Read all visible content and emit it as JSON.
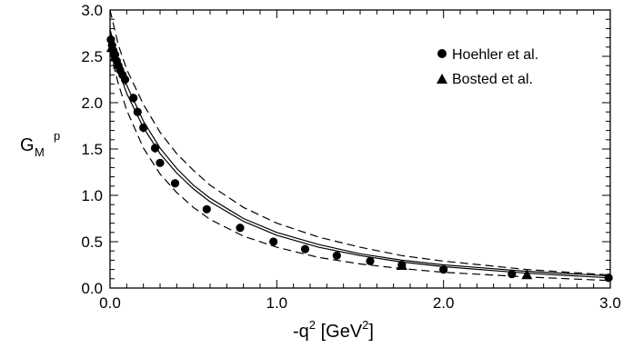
{
  "chart_data": {
    "type": "scatter",
    "xlabel": {
      "text": "-q",
      "sup": "2",
      "unit_open": " [GeV",
      "unit_sup": "2",
      "unit_close": "]"
    },
    "ylabel": {
      "main": "G",
      "sub": "M",
      "sup": "p"
    },
    "xlim": [
      0,
      3.0
    ],
    "ylim": [
      0,
      3.0
    ],
    "x_ticks": [
      0.0,
      1.0,
      2.0,
      3.0
    ],
    "x_tick_labels": [
      "0.0",
      "1.0",
      "2.0",
      "3.0"
    ],
    "y_ticks": [
      0.0,
      0.5,
      1.0,
      1.5,
      2.0,
      2.5,
      3.0
    ],
    "y_tick_labels": [
      "0.0",
      "0.5",
      "1.0",
      "1.5",
      "2.0",
      "2.5",
      "3.0"
    ],
    "legend_position": "top-right",
    "grid": false,
    "series": [
      {
        "name": "Hoehler et al.",
        "marker": "circle",
        "x": [
          0.005,
          0.012,
          0.02,
          0.03,
          0.04,
          0.05,
          0.06,
          0.075,
          0.09,
          0.14,
          0.165,
          0.2,
          0.27,
          0.3,
          0.39,
          0.58,
          0.78,
          0.98,
          1.17,
          1.36,
          1.56,
          1.75,
          2.0,
          2.41,
          2.99
        ],
        "y": [
          2.68,
          2.62,
          2.56,
          2.52,
          2.45,
          2.4,
          2.35,
          2.3,
          2.25,
          2.05,
          1.9,
          1.73,
          1.51,
          1.35,
          1.13,
          0.85,
          0.65,
          0.5,
          0.42,
          0.35,
          0.29,
          0.25,
          0.2,
          0.15,
          0.11
        ],
        "yerr": [
          0.08,
          0.08,
          0.08,
          0.07,
          0.07,
          0.07,
          0.06,
          0.06,
          0.06,
          0.05,
          0.05,
          0.05,
          0.05,
          0.04,
          0.04,
          0.03,
          0.03,
          0.02,
          0.02,
          0.02,
          0.02,
          0.02,
          0.02,
          0.02,
          0.02
        ]
      },
      {
        "name": "Bosted et al.",
        "marker": "triangle",
        "x": [
          0.01,
          0.03,
          0.05,
          1.75,
          2.5
        ],
        "y": [
          2.6,
          2.5,
          2.42,
          0.25,
          0.15
        ],
        "yerr": [
          0.05,
          0.05,
          0.05,
          0.02,
          0.02
        ]
      }
    ],
    "curves": [
      {
        "style": "solid",
        "x": [
          0,
          0.05,
          0.1,
          0.2,
          0.3,
          0.4,
          0.5,
          0.6,
          0.8,
          1.0,
          1.25,
          1.5,
          1.75,
          2.0,
          2.5,
          3.0
        ],
        "y": [
          2.79,
          2.45,
          2.19,
          1.8,
          1.51,
          1.29,
          1.11,
          0.97,
          0.75,
          0.6,
          0.47,
          0.37,
          0.3,
          0.25,
          0.18,
          0.13
        ]
      },
      {
        "style": "solid",
        "x": [
          0,
          0.05,
          0.1,
          0.2,
          0.3,
          0.4,
          0.5,
          0.6,
          0.8,
          1.0,
          1.25,
          1.5,
          1.75,
          2.0,
          2.5,
          3.0
        ],
        "y": [
          2.65,
          2.35,
          2.1,
          1.73,
          1.45,
          1.24,
          1.07,
          0.93,
          0.72,
          0.57,
          0.44,
          0.35,
          0.28,
          0.23,
          0.16,
          0.11
        ]
      },
      {
        "style": "dashed",
        "x": [
          0,
          0.05,
          0.1,
          0.2,
          0.3,
          0.4,
          0.5,
          0.6,
          0.8,
          1.0,
          1.25,
          1.5,
          1.75,
          2.0,
          2.5,
          3.0
        ],
        "y": [
          3.0,
          2.62,
          2.36,
          1.98,
          1.68,
          1.45,
          1.27,
          1.11,
          0.87,
          0.7,
          0.55,
          0.44,
          0.35,
          0.29,
          0.2,
          0.14
        ]
      },
      {
        "style": "dashed",
        "x": [
          0,
          0.05,
          0.1,
          0.2,
          0.3,
          0.4,
          0.5,
          0.6,
          0.8,
          1.0,
          1.25,
          1.5,
          1.75,
          2.0,
          2.5,
          3.0
        ],
        "y": [
          2.55,
          2.2,
          1.92,
          1.51,
          1.23,
          1.03,
          0.87,
          0.74,
          0.56,
          0.44,
          0.33,
          0.26,
          0.21,
          0.17,
          0.12,
          0.08
        ]
      }
    ]
  }
}
